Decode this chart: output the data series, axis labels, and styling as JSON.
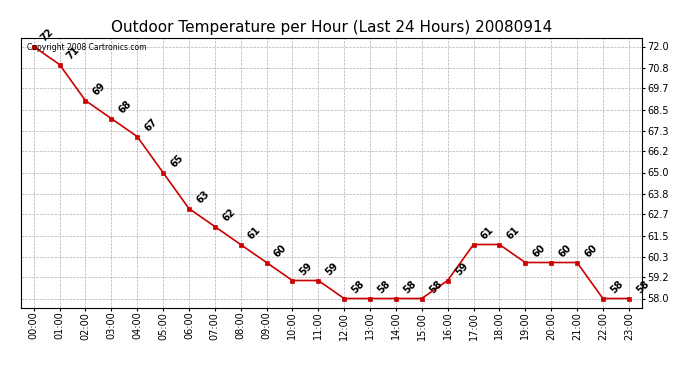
{
  "title": "Outdoor Temperature per Hour (Last 24 Hours) 20080914",
  "copyright": "Copyright 2008 Cartronics.com",
  "hours": [
    "00:00",
    "01:00",
    "02:00",
    "03:00",
    "04:00",
    "05:00",
    "06:00",
    "07:00",
    "08:00",
    "09:00",
    "10:00",
    "11:00",
    "12:00",
    "13:00",
    "14:00",
    "15:00",
    "16:00",
    "17:00",
    "18:00",
    "19:00",
    "20:00",
    "21:00",
    "22:00",
    "23:00"
  ],
  "temps": [
    72,
    71,
    69,
    68,
    67,
    65,
    63,
    62,
    61,
    60,
    59,
    59,
    58,
    58,
    58,
    58,
    59,
    61,
    61,
    60,
    60,
    60,
    58,
    58
  ],
  "line_color": "#cc0000",
  "marker_color": "#cc0000",
  "bg_color": "#ffffff",
  "grid_color": "#b0b0b0",
  "ymin": 57.5,
  "ymax": 72.5,
  "yticks": [
    58.0,
    59.2,
    60.3,
    61.5,
    62.7,
    63.8,
    65.0,
    66.2,
    67.3,
    68.5,
    69.7,
    70.8,
    72.0
  ],
  "title_fontsize": 11,
  "label_fontsize": 7,
  "annot_fontsize": 7
}
